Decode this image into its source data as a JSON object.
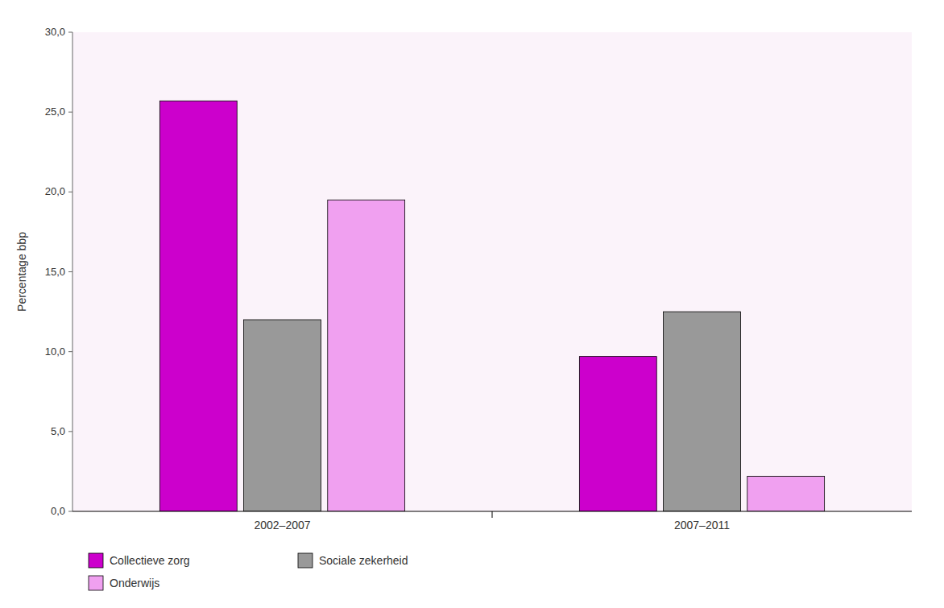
{
  "chart_data": {
    "type": "bar",
    "categories": [
      "2002–2007",
      "2007–2011"
    ],
    "series": [
      {
        "name": "Collectieve zorg",
        "color": "#cc00cc",
        "values": [
          25.7,
          9.7
        ]
      },
      {
        "name": "Sociale zekerheid",
        "color": "#999999",
        "values": [
          12.0,
          12.5
        ]
      },
      {
        "name": "Onderwijs",
        "color": "#f0a0f0",
        "values": [
          19.5,
          2.2
        ]
      }
    ],
    "ylabel": "Percentage bbp",
    "ylim": [
      0,
      30
    ],
    "yticks": [
      {
        "value": 0,
        "label": "0,0"
      },
      {
        "value": 5,
        "label": "5,0"
      },
      {
        "value": 10,
        "label": "10,0"
      },
      {
        "value": 15,
        "label": "15,0"
      },
      {
        "value": 20,
        "label": "20,0"
      },
      {
        "value": 25,
        "label": "25,0"
      },
      {
        "value": 30,
        "label": "30,0"
      }
    ],
    "grid": false,
    "legend": "bottom"
  }
}
